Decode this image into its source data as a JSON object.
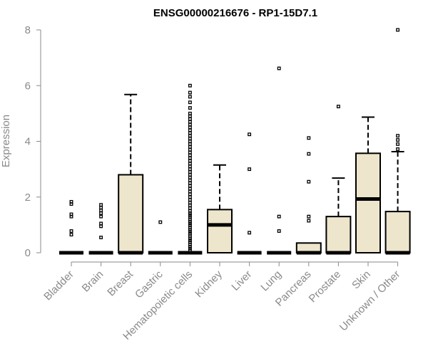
{
  "chart_data": {
    "type": "boxplot",
    "title": "ENSG00000216676 - RP1-15D7.1",
    "ylabel": "Expression",
    "xlabel": "",
    "ylim": [
      0,
      8
    ],
    "yticks": [
      0,
      2,
      4,
      6,
      8
    ],
    "box_fill": "#ede6cc",
    "axis_color": "#8a8a8a",
    "categories": [
      "Bladder",
      "Brain",
      "Breast",
      "Gastric",
      "Hematopoietic cells",
      "Kidney",
      "Liver",
      "Lung",
      "Pancreas",
      "Prostate",
      "Skin",
      "Unknown / Other"
    ],
    "boxes": [
      {
        "category": "Bladder",
        "q1": 0,
        "median": 0,
        "q3": 0,
        "whisker_low": 0,
        "whisker_high": 0,
        "outliers": [
          0.65,
          0.78,
          1.3,
          1.38,
          1.75,
          1.83
        ]
      },
      {
        "category": "Brain",
        "q1": 0,
        "median": 0,
        "q3": 0,
        "whisker_low": 0,
        "whisker_high": 0,
        "outliers": [
          0.55,
          0.95,
          1.05,
          1.3,
          1.42,
          1.52,
          1.62,
          1.72
        ]
      },
      {
        "category": "Breast",
        "q1": 0,
        "median": 0,
        "q3": 2.8,
        "whisker_low": 0,
        "whisker_high": 5.68,
        "outliers": []
      },
      {
        "category": "Gastric",
        "q1": 0,
        "median": 0,
        "q3": 0,
        "whisker_low": 0,
        "whisker_high": 0,
        "outliers": [
          1.1
        ]
      },
      {
        "category": "Hematopoietic cells",
        "q1": 0,
        "median": 0,
        "q3": 0,
        "whisker_low": 0,
        "whisker_high": 0,
        "outliers": [
          0.08,
          0.15,
          0.22,
          0.3,
          0.38,
          0.45,
          0.52,
          0.6,
          0.68,
          0.75,
          0.82,
          0.9,
          0.98,
          1.05,
          1.12,
          1.2,
          1.28,
          1.35,
          1.42,
          1.5,
          1.6,
          1.7,
          1.8,
          1.9,
          2.0,
          2.1,
          2.2,
          2.3,
          2.4,
          2.5,
          2.6,
          2.7,
          2.8,
          2.9,
          3.0,
          3.1,
          3.2,
          3.3,
          3.4,
          3.5,
          3.6,
          3.7,
          3.8,
          3.9,
          4.0,
          4.1,
          4.2,
          4.3,
          4.4,
          4.5,
          4.6,
          4.7,
          4.8,
          4.9,
          5.0,
          5.2,
          5.4,
          5.6,
          5.75,
          6.0
        ]
      },
      {
        "category": "Kidney",
        "q1": 0,
        "median": 1.0,
        "q3": 1.55,
        "whisker_low": 0,
        "whisker_high": 3.15,
        "outliers": []
      },
      {
        "category": "Liver",
        "q1": 0,
        "median": 0,
        "q3": 0,
        "whisker_low": 0,
        "whisker_high": 0,
        "outliers": [
          0.72,
          3.0,
          4.25
        ]
      },
      {
        "category": "Lung",
        "q1": 0,
        "median": 0,
        "q3": 0,
        "whisker_low": 0,
        "whisker_high": 0,
        "outliers": [
          0.78,
          1.3,
          6.62
        ]
      },
      {
        "category": "Pancreas",
        "q1": 0,
        "median": 0,
        "q3": 0.35,
        "whisker_low": 0,
        "whisker_high": 0.35,
        "outliers": [
          1.15,
          1.3,
          2.55,
          3.55,
          4.12
        ]
      },
      {
        "category": "Prostate",
        "q1": 0,
        "median": 0,
        "q3": 1.3,
        "whisker_low": 0,
        "whisker_high": 2.68,
        "outliers": [
          5.25
        ]
      },
      {
        "category": "Skin",
        "q1": 0,
        "median": 1.93,
        "q3": 3.57,
        "whisker_low": 0,
        "whisker_high": 4.87,
        "outliers": []
      },
      {
        "category": "Unknown / Other",
        "q1": 0,
        "median": 0,
        "q3": 1.48,
        "whisker_low": 0,
        "whisker_high": 3.63,
        "outliers": [
          3.72,
          3.9,
          4.05,
          4.2,
          8.0
        ]
      }
    ]
  }
}
